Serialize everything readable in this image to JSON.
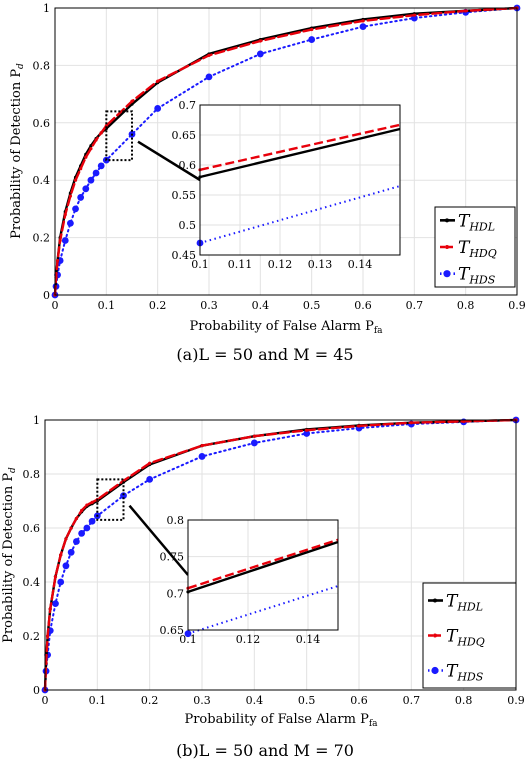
{
  "colors": {
    "HDL": "#000000",
    "HDQ": "#e8000b",
    "HDS": "#1a1aff"
  },
  "chart_data": [
    {
      "type": "line",
      "caption_prefix": "(a)",
      "caption_params": "L = 50 and M = 45",
      "xlabel": "Probability of False Alarm P",
      "xlabel_sub": "fa",
      "ylabel": "Probability of Detection P",
      "ylabel_sub": "d",
      "xlim": [
        0,
        0.9
      ],
      "ylim": [
        0,
        1
      ],
      "xticks": [
        "0",
        "0.1",
        "0.2",
        "0.3",
        "0.4",
        "0.5",
        "0.6",
        "0.7",
        "0.8",
        "0.9"
      ],
      "yticks": [
        "0",
        "0.2",
        "0.4",
        "0.6",
        "0.8",
        "1"
      ],
      "grid": true,
      "legend_position": "bottom-right",
      "legend": [
        {
          "label": "T",
          "sub": "HDL",
          "series": "HDL"
        },
        {
          "label": "T",
          "sub": "HDQ",
          "series": "HDQ"
        },
        {
          "label": "T",
          "sub": "HDS",
          "series": "HDS"
        }
      ],
      "series": [
        {
          "key": "HDL",
          "style": "solid",
          "x": [
            0,
            0.002,
            0.005,
            0.01,
            0.02,
            0.03,
            0.04,
            0.05,
            0.06,
            0.07,
            0.08,
            0.09,
            0.1,
            0.15,
            0.2,
            0.3,
            0.4,
            0.5,
            0.6,
            0.7,
            0.8,
            0.9
          ],
          "y": [
            0,
            0.06,
            0.12,
            0.2,
            0.29,
            0.355,
            0.41,
            0.45,
            0.49,
            0.52,
            0.545,
            0.565,
            0.58,
            0.665,
            0.74,
            0.84,
            0.89,
            0.93,
            0.96,
            0.98,
            0.99,
            1.0
          ]
        },
        {
          "key": "HDQ",
          "style": "dashed",
          "x": [
            0,
            0.002,
            0.005,
            0.01,
            0.02,
            0.03,
            0.04,
            0.05,
            0.06,
            0.07,
            0.08,
            0.09,
            0.1,
            0.15,
            0.2,
            0.3,
            0.4,
            0.5,
            0.6,
            0.7,
            0.8,
            0.9
          ],
          "y": [
            0,
            0.06,
            0.12,
            0.19,
            0.28,
            0.345,
            0.4,
            0.44,
            0.48,
            0.51,
            0.54,
            0.565,
            0.59,
            0.675,
            0.745,
            0.835,
            0.885,
            0.925,
            0.955,
            0.975,
            0.99,
            1.0
          ]
        },
        {
          "key": "HDS",
          "style": "dotted",
          "x": [
            0,
            0.002,
            0.005,
            0.01,
            0.02,
            0.03,
            0.04,
            0.05,
            0.06,
            0.07,
            0.08,
            0.09,
            0.1,
            0.15,
            0.2,
            0.3,
            0.4,
            0.5,
            0.6,
            0.7,
            0.8,
            0.9
          ],
          "y": [
            0,
            0.03,
            0.07,
            0.12,
            0.19,
            0.25,
            0.3,
            0.34,
            0.37,
            0.4,
            0.425,
            0.45,
            0.47,
            0.56,
            0.65,
            0.76,
            0.84,
            0.89,
            0.935,
            0.965,
            0.985,
            1.0
          ]
        }
      ],
      "inset": {
        "xlim": [
          0.1,
          0.15
        ],
        "ylim": [
          0.45,
          0.7
        ],
        "xticks": [
          "0.1",
          "0.11",
          "0.12",
          "0.13",
          "0.14"
        ],
        "yticks": [
          "0.45",
          "0.5",
          "0.55",
          "0.6",
          "0.65",
          "0.7"
        ],
        "series": [
          {
            "key": "HDL",
            "style": "solid",
            "x": [
              0.1,
              0.15
            ],
            "y": [
              0.58,
              0.66
            ]
          },
          {
            "key": "HDQ",
            "style": "dashed",
            "x": [
              0.1,
              0.15
            ],
            "y": [
              0.592,
              0.667
            ]
          },
          {
            "key": "HDS",
            "style": "dotted",
            "x": [
              0.1,
              0.15
            ],
            "y": [
              0.47,
              0.565
            ]
          }
        ],
        "zoom_box": {
          "x": [
            0.1,
            0.15
          ],
          "y": [
            0.47,
            0.64
          ]
        }
      }
    },
    {
      "type": "line",
      "caption_prefix": "(b)",
      "caption_params": "L = 50 and M = 70",
      "xlabel": "Probability of False Alarm P",
      "xlabel_sub": "fa",
      "ylabel": "Probability of Detection P",
      "ylabel_sub": "d",
      "xlim": [
        0,
        0.9
      ],
      "ylim": [
        0,
        1
      ],
      "xticks": [
        "0",
        "0.1",
        "0.2",
        "0.3",
        "0.4",
        "0.5",
        "0.6",
        "0.7",
        "0.8",
        "0.9"
      ],
      "yticks": [
        "0",
        "0.2",
        "0.4",
        "0.6",
        "0.8",
        "1"
      ],
      "grid": true,
      "legend_position": "bottom-right",
      "legend": [
        {
          "label": "T",
          "sub": "HDL",
          "series": "HDL"
        },
        {
          "label": "T",
          "sub": "HDQ",
          "series": "HDQ"
        },
        {
          "label": "T",
          "sub": "HDS",
          "series": "HDS"
        }
      ],
      "series": [
        {
          "key": "HDL",
          "style": "solid",
          "x": [
            0,
            0.002,
            0.005,
            0.01,
            0.02,
            0.03,
            0.04,
            0.05,
            0.06,
            0.07,
            0.08,
            0.09,
            0.1,
            0.15,
            0.2,
            0.3,
            0.4,
            0.5,
            0.6,
            0.7,
            0.8,
            0.9
          ],
          "y": [
            0,
            0.1,
            0.2,
            0.3,
            0.42,
            0.5,
            0.56,
            0.6,
            0.635,
            0.66,
            0.68,
            0.69,
            0.7,
            0.77,
            0.835,
            0.905,
            0.94,
            0.965,
            0.98,
            0.99,
            0.995,
            1.0
          ]
        },
        {
          "key": "HDQ",
          "style": "dashed",
          "x": [
            0,
            0.002,
            0.005,
            0.01,
            0.02,
            0.03,
            0.04,
            0.05,
            0.06,
            0.07,
            0.08,
            0.09,
            0.1,
            0.15,
            0.2,
            0.3,
            0.4,
            0.5,
            0.6,
            0.7,
            0.8,
            0.9
          ],
          "y": [
            0,
            0.1,
            0.2,
            0.3,
            0.42,
            0.5,
            0.56,
            0.6,
            0.635,
            0.665,
            0.685,
            0.695,
            0.705,
            0.775,
            0.84,
            0.905,
            0.94,
            0.962,
            0.978,
            0.99,
            0.995,
            1.0
          ]
        },
        {
          "key": "HDS",
          "style": "dotted",
          "x": [
            0,
            0.002,
            0.005,
            0.01,
            0.02,
            0.03,
            0.04,
            0.05,
            0.06,
            0.07,
            0.08,
            0.09,
            0.1,
            0.15,
            0.2,
            0.3,
            0.4,
            0.5,
            0.6,
            0.7,
            0.8,
            0.9
          ],
          "y": [
            0,
            0.07,
            0.13,
            0.22,
            0.32,
            0.4,
            0.46,
            0.51,
            0.55,
            0.58,
            0.6,
            0.625,
            0.645,
            0.72,
            0.78,
            0.865,
            0.915,
            0.95,
            0.97,
            0.985,
            0.993,
            1.0
          ]
        }
      ],
      "inset": {
        "xlim": [
          0.1,
          0.15
        ],
        "ylim": [
          0.65,
          0.8
        ],
        "xticks": [
          "0.1",
          "0.12",
          "0.14"
        ],
        "yticks": [
          "0.65",
          "0.7",
          "0.75",
          "0.8"
        ],
        "series": [
          {
            "key": "HDL",
            "style": "solid",
            "x": [
              0.1,
              0.15
            ],
            "y": [
              0.702,
              0.77
            ]
          },
          {
            "key": "HDQ",
            "style": "dashed",
            "x": [
              0.1,
              0.15
            ],
            "y": [
              0.707,
              0.773
            ]
          },
          {
            "key": "HDS",
            "style": "dotted",
            "x": [
              0.1,
              0.15
            ],
            "y": [
              0.645,
              0.71
            ]
          }
        ],
        "zoom_box": {
          "x": [
            0.1,
            0.15
          ],
          "y": [
            0.63,
            0.78
          ]
        }
      }
    }
  ]
}
